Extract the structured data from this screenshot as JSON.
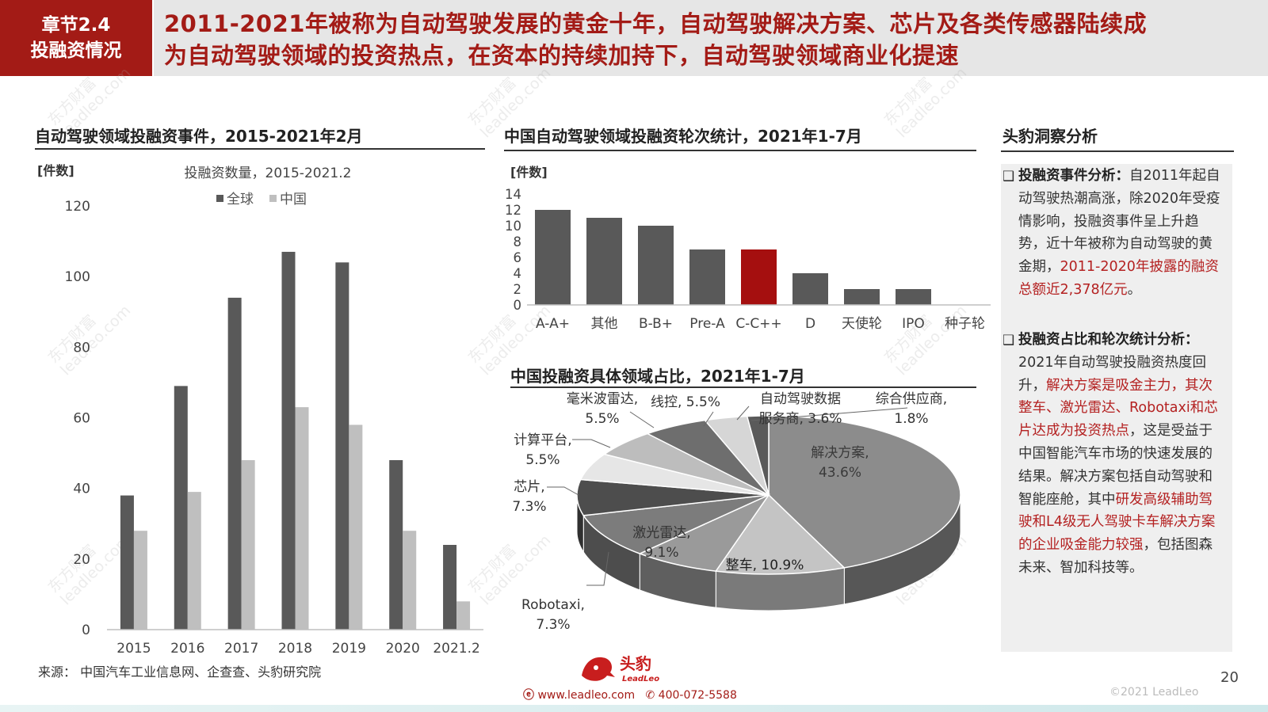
{
  "header": {
    "section_line1": "章节2.4",
    "section_line2": "投融资情况",
    "title_line1": "2011-2021年被称为自动驾驶发展的黄金十年，自动驾驶解决方案、芯片及各类传感器陆续成",
    "title_line2": "为自动驾驶领域的投资热点，在资本的持续加持下，自动驾驶领域商业化提速"
  },
  "headings": {
    "chart1": "自动驾驶领域投融资事件，2015-2021年2月",
    "chart2": "中国自动驾驶领域投融资轮次统计，2021年1-7月",
    "chart3": "中国投融资具体领域占比，2021年1-7月",
    "insight": "头豹洞察分析"
  },
  "chart_data": [
    {
      "type": "bar",
      "title": "投融资数量，2015-2021.2",
      "unit_label": "[件数]",
      "categories": [
        "2015",
        "2016",
        "2017",
        "2018",
        "2019",
        "2020",
        "2021.2"
      ],
      "series": [
        {
          "name": "全球",
          "color": "#595959",
          "values": [
            38,
            69,
            94,
            107,
            104,
            48,
            24
          ]
        },
        {
          "name": "中国",
          "color": "#bfbfbf",
          "values": [
            28,
            39,
            48,
            63,
            58,
            28,
            8
          ]
        }
      ],
      "ylim": [
        0,
        120
      ],
      "yticks": [
        0,
        20,
        40,
        60,
        80,
        100,
        120
      ],
      "legend": "top"
    },
    {
      "type": "bar",
      "title": "",
      "unit_label": "[件数]",
      "categories": [
        "A-A+",
        "其他",
        "B-B+",
        "Pre-A",
        "C-C++",
        "D",
        "天使轮",
        "IPO",
        "种子轮"
      ],
      "values": [
        12,
        11,
        10,
        7,
        7,
        4,
        2,
        2,
        0
      ],
      "highlight_index": 4,
      "bar_color": "#595959",
      "highlight_color": "#a50f0f",
      "ylim": [
        0,
        14
      ],
      "yticks": [
        0,
        2,
        4,
        6,
        8,
        10,
        12,
        14
      ]
    },
    {
      "type": "pie",
      "title": "",
      "slices": [
        {
          "name": "解决方案",
          "label_name": "解决方案,",
          "value": 43.6,
          "value_label": "43.6%",
          "color": "#8c8c8c"
        },
        {
          "name": "整车",
          "label_name": "整车, 10.9%",
          "value": 10.9,
          "value_label": "",
          "color": "#c4c4c4"
        },
        {
          "name": "Robotaxi",
          "label_name": "Robotaxi,",
          "value": 7.3,
          "value_label": "7.3%",
          "color": "#9a9a9a"
        },
        {
          "name": "激光雷达",
          "label_name": "激光雷达,",
          "value": 9.1,
          "value_label": "9.1%",
          "color": "#7c7c7c"
        },
        {
          "name": "芯片",
          "label_name": "芯片,",
          "value": 7.3,
          "value_label": "7.3%",
          "color": "#4d4d4d"
        },
        {
          "name": "计算平台",
          "label_name": "计算平台,",
          "value": 5.5,
          "value_label": "5.5%",
          "color": "#e6e6e6"
        },
        {
          "name": "毫米波雷达",
          "label_name": "毫米波雷达,",
          "value": 5.5,
          "value_label": "5.5%",
          "color": "#bdbdbd"
        },
        {
          "name": "线控",
          "label_name": "线控, 5.5%",
          "value": 5.5,
          "value_label": "",
          "color": "#6e6e6e"
        },
        {
          "name": "自动驾驶数据服务商",
          "label_name": "自动驾驶数据",
          "value": 3.6,
          "value_label": "服务商, 3.6%",
          "color": "#d6d6d6"
        },
        {
          "name": "综合供应商",
          "label_name": "综合供应商,",
          "value": 1.8,
          "value_label": "1.8%",
          "color": "#5a5a5a"
        }
      ]
    }
  ],
  "insights": {
    "p1_label": "投融资事件分析：",
    "p1_text": "自2011年起自动驾驶热潮高涨，除2020年受疫情影响，投融资事件呈上升趋势，近十年被称为自动驾驶的黄金期，",
    "p1_red": "2011-2020年披露的融资总额近2,378亿元",
    "p1_end": "。",
    "p2_label": "投融资占比和轮次统计分析：",
    "p2_text1": "2021年自动驾驶投融资热度回升，",
    "p2_red1": "解决方案是吸金主力，其次整车、激光雷达、Robotaxi和芯片达成为投资热点",
    "p2_text2": "，这是受益于中国智能汽车市场的快速发展的结果。解决方案包括自动驾驶和智能座舱，其中",
    "p2_red2": "研发高级辅助驾驶和L4级无人驾驶卡车解决方案的企业吸金能力较强",
    "p2_text3": "，包括图森未来、智加科技等。"
  },
  "footer": {
    "source": "来源：  中国汽车工业信息网、企查查、头豹研究院",
    "page": "20",
    "copyright": "©2021 LeadLeo",
    "logo_cn": "头豹",
    "logo_en": "LeadLeo",
    "website": "www.leadleo.com",
    "phone": "400-072-5588"
  },
  "watermark": {
    "line1": "东方财富",
    "line2": "leadleo.com"
  },
  "colors": {
    "accent": "#a31b16",
    "panel": "#efefef"
  }
}
